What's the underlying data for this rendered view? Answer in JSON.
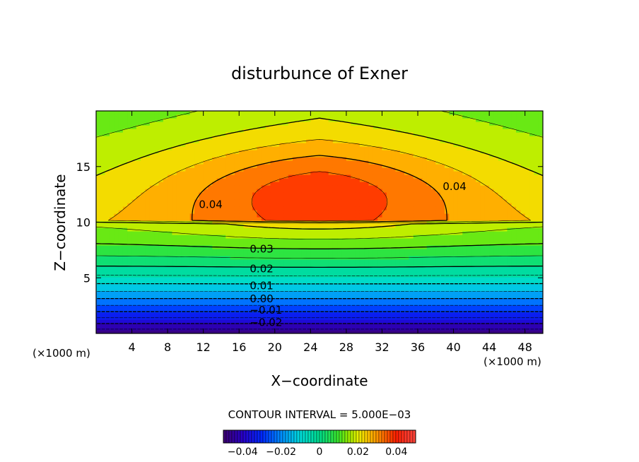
{
  "chart_data": {
    "type": "contour",
    "title": "disturbunce of Exner",
    "xlabel": "X−coordinate",
    "ylabel": "Z−coordinate",
    "x_unit_label_left": "(×1000 m)",
    "x_unit_label_right": "(×1000 m)",
    "xlim": [
      0,
      50
    ],
    "ylim": [
      0,
      20
    ],
    "x_ticks": [
      4,
      8,
      12,
      16,
      20,
      24,
      28,
      32,
      36,
      40,
      44,
      48
    ],
    "y_ticks": [
      5,
      10,
      15
    ],
    "contour_interval_text": "CONTOUR INTERVAL = 5.000E−03",
    "contour_interval": 0.005,
    "value_range": [
      -0.05,
      0.05
    ],
    "contour_labels": [
      {
        "text": "0.04",
        "x": 11.5,
        "y": 11.6
      },
      {
        "text": "0.04",
        "x": 38.8,
        "y": 13.2
      },
      {
        "text": "0.03",
        "x": 17.2,
        "y": 7.6
      },
      {
        "text": "0.02",
        "x": 17.2,
        "y": 5.8
      },
      {
        "text": "0.01",
        "x": 17.2,
        "y": 4.3
      },
      {
        "text": "0.00",
        "x": 17.2,
        "y": 3.1
      },
      {
        "text": "−0.01",
        "x": 17.2,
        "y": 2.1
      },
      {
        "text": "−0.02",
        "x": 17.2,
        "y": 1.0
      }
    ],
    "colorbar": {
      "ticks": [
        "−0.04",
        "−0.02",
        "0",
        "0.02",
        "0.04"
      ],
      "tick_values": [
        -0.04,
        -0.02,
        0,
        0.02,
        0.04
      ],
      "range": [
        -0.05,
        0.05
      ]
    },
    "grid": false
  }
}
